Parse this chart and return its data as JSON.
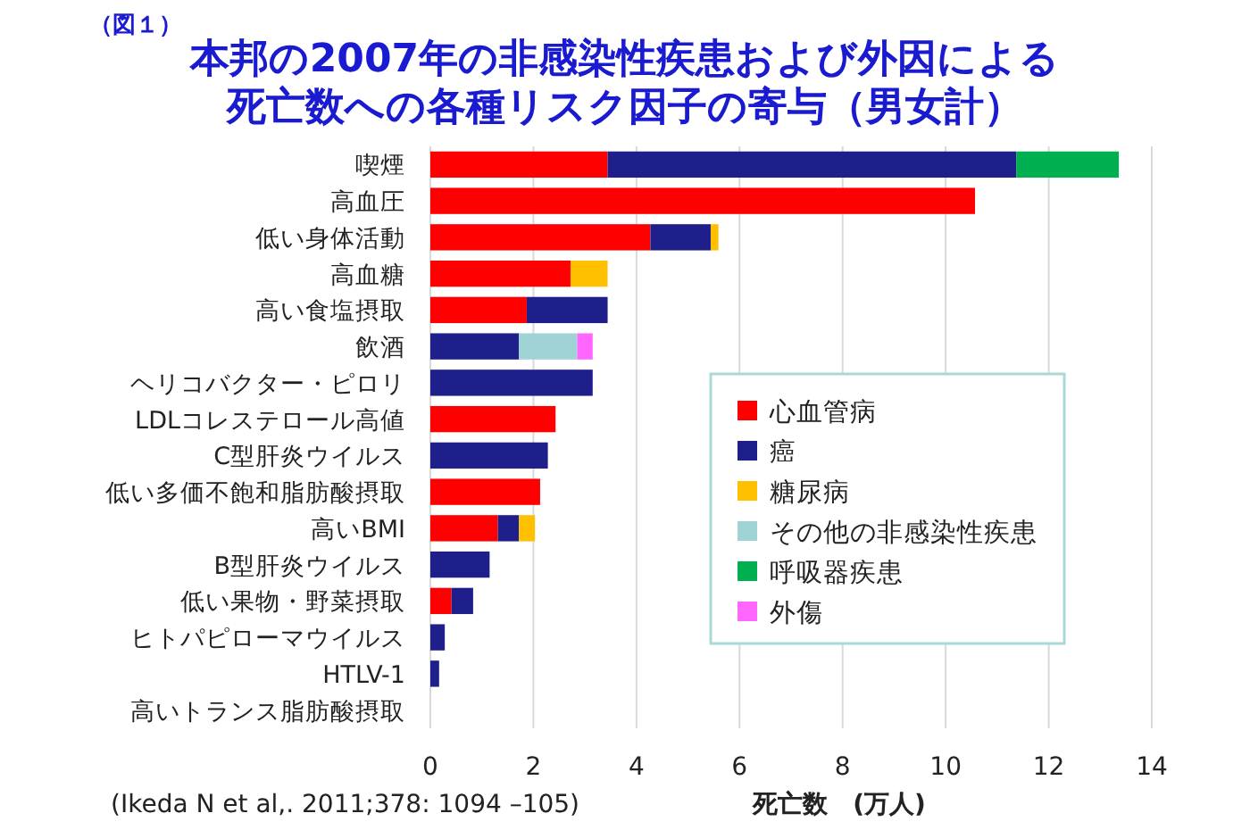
{
  "chart_data": {
    "type": "bar",
    "orientation": "horizontal",
    "stacked": true,
    "title": "本邦の2007年の非感染性疾患および外因による死亡数への各種リスク因子の寄与（男女計）",
    "subtitle": "（図１）",
    "xlabel": "死亡数　(万人)",
    "annotations": [
      "(Ikeda N et al,. 2011;378: 1094 –105)"
    ],
    "categories": [
      "喫煙",
      "高血圧",
      "低い身体活動",
      "高血糖",
      "高い食塩摂取",
      "飲酒",
      "ヘリコバクター・ピロリ",
      "LDLコレステロール高値",
      "C型肝炎ウイルス",
      "低い多価不飽和脂肪酸摂取",
      "高いBMI",
      "B型肝炎ウイルス",
      "低い果物・野菜摂取",
      "ヒトパピローマウイルス",
      "HTLV-1",
      "高いトランス脂肪酸摂取"
    ],
    "series": [
      {
        "name": "心血管病",
        "color": "#ff0000",
        "values": [
          3.44,
          10.57,
          4.27,
          2.72,
          1.87,
          null,
          null,
          2.43,
          null,
          2.13,
          1.31,
          null,
          0.41,
          null,
          null,
          null
        ]
      },
      {
        "name": "癌",
        "color": "#1f1f8c",
        "values": [
          7.93,
          null,
          1.17,
          null,
          1.57,
          1.72,
          3.15,
          null,
          2.28,
          null,
          0.41,
          1.15,
          0.42,
          0.28,
          0.17,
          null
        ]
      },
      {
        "name": "糖尿病",
        "color": "#ffc000",
        "values": [
          null,
          null,
          0.15,
          0.72,
          null,
          null,
          null,
          null,
          null,
          null,
          0.31,
          null,
          null,
          null,
          null,
          null
        ]
      },
      {
        "name": "その他の非感染性疾患",
        "color": "#9fd3d6",
        "values": [
          null,
          null,
          null,
          null,
          null,
          1.13,
          null,
          null,
          null,
          null,
          null,
          null,
          null,
          null,
          null,
          null
        ]
      },
      {
        "name": "呼吸器疾患",
        "color": "#00b050",
        "values": [
          1.99,
          null,
          null,
          null,
          null,
          null,
          null,
          null,
          null,
          null,
          null,
          null,
          null,
          null,
          null,
          null
        ]
      },
      {
        "name": "外傷",
        "color": "#ff66ff",
        "values": [
          null,
          null,
          null,
          null,
          null,
          0.3,
          null,
          null,
          null,
          null,
          null,
          null,
          null,
          null,
          null,
          null
        ]
      }
    ],
    "xlim": [
      0,
      14
    ],
    "xticks": [
      0,
      2,
      4,
      6,
      8,
      10,
      12,
      14
    ],
    "grid": "x",
    "legend": "right"
  }
}
